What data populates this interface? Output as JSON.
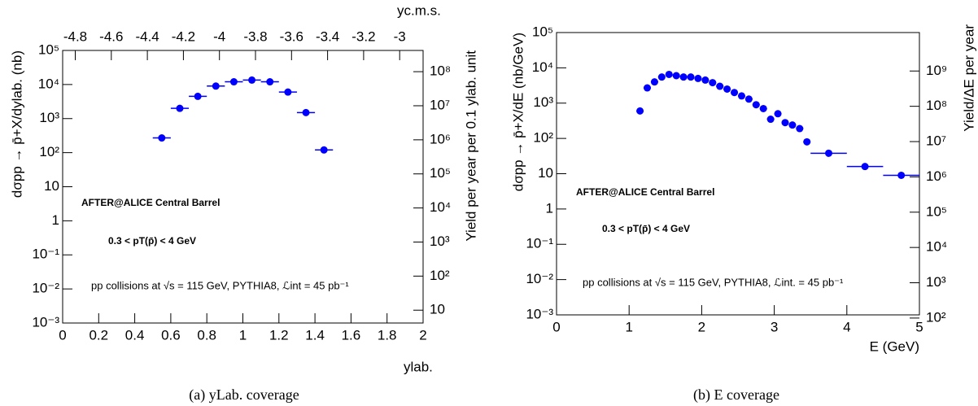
{
  "chart_data": [
    {
      "type": "scatter",
      "x_label": "ylab.",
      "x2_label": "yc.m.s.",
      "y_label": "dσpp → p̄+X/dylab. (nb)",
      "y2_label": "Yield per year per 0.1 ylab. unit",
      "caption": "(a) yLab. coverage",
      "annotations": [
        "AFTER@ALICE Central Barrel",
        "0.3 < pT(p̄) < 4 GeV",
        "pp collisions at √s = 115 GeV, PYTHIA8, ℒint = 45 pb⁻¹"
      ],
      "color": "#0000ff",
      "x": [
        0.55,
        0.65,
        0.75,
        0.85,
        0.95,
        1.05,
        1.15,
        1.25,
        1.35,
        1.45
      ],
      "xerr": [
        0.05,
        0.05,
        0.05,
        0.05,
        0.05,
        0.05,
        0.05,
        0.05,
        0.05,
        0.05
      ],
      "values": [
        270,
        2000,
        4500,
        9000,
        12000,
        13500,
        12000,
        6000,
        1500,
        120
      ],
      "xlim": [
        0,
        2
      ],
      "xticks": [
        0,
        0.2,
        0.4,
        0.6,
        0.8,
        1,
        1.2,
        1.4,
        1.6,
        1.8,
        2
      ],
      "x2lim": [
        -4.87,
        -2.87
      ],
      "x2ticks": [
        -4.8,
        -4.6,
        -4.4,
        -4.2,
        -4,
        -3.8,
        -3.6,
        -3.4,
        -3.2,
        -3
      ],
      "ylim": [
        0.001,
        100000
      ],
      "log_y": true,
      "yticks": [
        {
          "value": 0.001,
          "label": "10⁻³"
        },
        {
          "value": 0.01,
          "label": "10⁻²"
        },
        {
          "value": 0.1,
          "label": "10⁻¹"
        },
        1,
        10,
        {
          "value": 100,
          "label": "10²"
        },
        {
          "value": 1000,
          "label": "10³"
        },
        {
          "value": 10000,
          "label": "10⁴"
        },
        {
          "value": 100000,
          "label": "10⁵"
        }
      ],
      "y2lim": [
        4.2,
        420000000
      ],
      "log_y2": true,
      "y2ticks": [
        10,
        {
          "value": 100,
          "label": "10²"
        },
        {
          "value": 1000,
          "label": "10³"
        },
        {
          "value": 10000,
          "label": "10⁴"
        },
        {
          "value": 100000,
          "label": "10⁵"
        },
        {
          "value": 1000000,
          "label": "10⁶"
        },
        {
          "value": 10000000,
          "label": "10⁷"
        },
        {
          "value": 100000000,
          "label": "10⁸"
        }
      ]
    },
    {
      "type": "scatter",
      "x_label": "E (GeV)",
      "y_label": "dσpp → p̄+X/dE (nb/GeV)",
      "y2_label": "Yield/ΔE  per year",
      "caption": "(b) E coverage",
      "annotations": [
        "AFTER@ALICE Central Barrel",
        "0.3 < pT(p̄) < 4 GeV",
        "pp collisions at √s = 115 GeV, PYTHIA8, ℒint. = 45 pb⁻¹"
      ],
      "color": "#0000ff",
      "x": [
        1.15,
        1.25,
        1.35,
        1.45,
        1.55,
        1.65,
        1.75,
        1.85,
        1.95,
        2.05,
        2.15,
        2.25,
        2.35,
        2.45,
        2.55,
        2.65,
        2.75,
        2.85,
        2.95,
        3.05,
        3.15,
        3.25,
        3.35,
        3.45,
        3.75,
        4.25,
        4.75
      ],
      "xerr": [
        0.05,
        0.05,
        0.05,
        0.05,
        0.05,
        0.05,
        0.05,
        0.05,
        0.05,
        0.05,
        0.05,
        0.05,
        0.05,
        0.05,
        0.05,
        0.05,
        0.05,
        0.05,
        0.05,
        0.05,
        0.05,
        0.05,
        0.05,
        0.05,
        0.25,
        0.25,
        0.25
      ],
      "values": [
        600,
        2700,
        4000,
        5500,
        6500,
        6000,
        5500,
        5500,
        5000,
        4500,
        3800,
        3000,
        2500,
        2000,
        1600,
        1300,
        900,
        700,
        350,
        500,
        280,
        240,
        190,
        80,
        38,
        16,
        9
      ],
      "xlim": [
        0,
        5
      ],
      "xticks": [
        0,
        1,
        2,
        3,
        4,
        5
      ],
      "ylim": [
        0.001,
        100000
      ],
      "log_y": true,
      "yticks": [
        {
          "value": 0.001,
          "label": "10⁻³"
        },
        {
          "value": 0.01,
          "label": "10⁻²"
        },
        {
          "value": 0.1,
          "label": "10⁻¹"
        },
        1,
        10,
        {
          "value": 100,
          "label": "10²"
        },
        {
          "value": 1000,
          "label": "10³"
        },
        {
          "value": 10000,
          "label": "10⁴"
        },
        {
          "value": 100000,
          "label": "10⁵"
        }
      ],
      "y2lim": [
        123,
        12300000000
      ],
      "log_y2": true,
      "y2ticks": [
        {
          "value": 100,
          "label": "10²"
        },
        {
          "value": 1000,
          "label": "10³"
        },
        {
          "value": 10000,
          "label": "10⁴"
        },
        {
          "value": 100000,
          "label": "10⁵"
        },
        {
          "value": 1000000,
          "label": "10⁶"
        },
        {
          "value": 10000000,
          "label": "10⁷"
        },
        {
          "value": 100000000,
          "label": "10⁸"
        },
        {
          "value": 1000000000,
          "label": "10⁹"
        }
      ]
    }
  ]
}
